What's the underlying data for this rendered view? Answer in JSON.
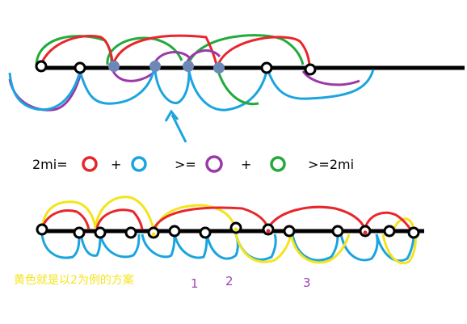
{
  "equation": {
    "lhs": "2mi=",
    "plus1": "+",
    "ge1": ">=",
    "plus2": "+",
    "rhs": ">=2mi"
  },
  "colors": {
    "red": "#e8262b",
    "blue": "#1aa4e0",
    "purple": "#9a3aa8",
    "green": "#22aa3c",
    "yellow": "#f4e41c",
    "black": "#000000",
    "gray": "#6b88b8",
    "caption": "#f4e41c",
    "numbers": "#a044b8"
  },
  "caption": "黄色就是以2为例的方案",
  "numbers": [
    "1",
    "2",
    "3"
  ]
}
